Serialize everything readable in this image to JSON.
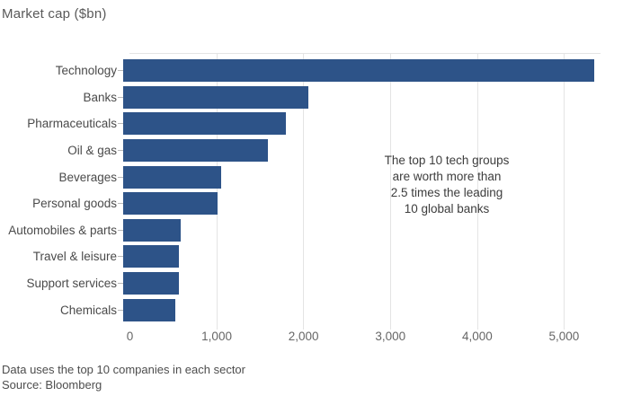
{
  "title": "Market cap ($bn)",
  "annotation": {
    "line1": "The top 10 tech groups",
    "line2": "are worth more than",
    "line3": "2.5 times the leading",
    "line4": "10 global banks"
  },
  "footer": {
    "note": "Data uses the top 10 companies in each sector",
    "source": "Source: Bloomberg"
  },
  "colors": {
    "bar": "#2d5388",
    "grid": "#e4e4e4",
    "category_label": "#4a4a4a",
    "tick_label": "#666666",
    "title": "#595959",
    "annotation_text": "#3d3d3d"
  },
  "chart_data": {
    "type": "bar",
    "orientation": "horizontal",
    "title": "Market cap ($bn)",
    "categories": [
      "Technology",
      "Banks",
      "Pharmaceuticals",
      "Oil & gas",
      "Beverages",
      "Personal goods",
      "Automobiles & parts",
      "Travel & leisure",
      "Support services",
      "Chemicals"
    ],
    "values": [
      5350,
      2100,
      1850,
      1645,
      1110,
      1075,
      655,
      632,
      628,
      595
    ],
    "xlabel": "",
    "ylabel": "",
    "xlim": [
      0,
      5420
    ],
    "xticks": [
      0,
      1000,
      2000,
      3000,
      4000,
      5000
    ],
    "xtick_labels": [
      "0",
      "1,000",
      "2,000",
      "3,000",
      "4,000",
      "5,000"
    ],
    "grid": true,
    "legend": false,
    "annotation": "The top 10 tech groups are worth more than 2.5 times the leading 10 global banks",
    "note": "Data uses the top 10 companies in each sector",
    "source": "Source: Bloomberg"
  }
}
